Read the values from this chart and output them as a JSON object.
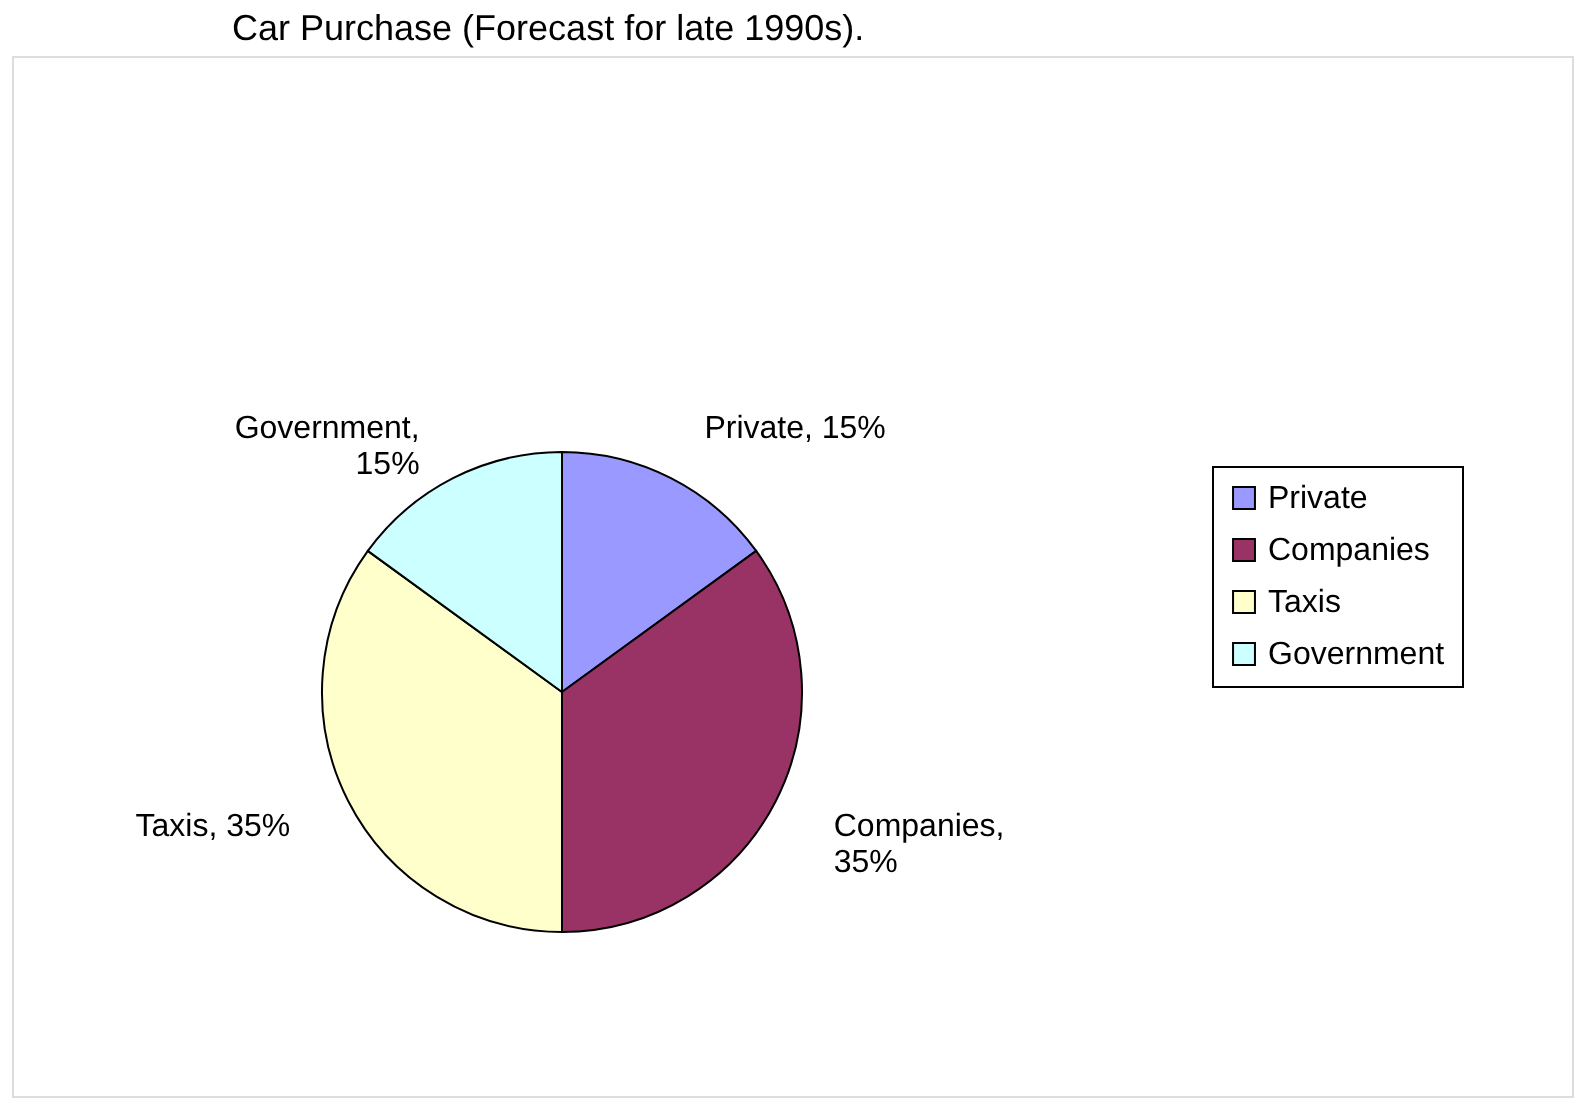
{
  "chart_data": {
    "type": "pie",
    "title": "Car Purchase (Forecast for late 1990s).",
    "categories": [
      "Private",
      "Companies",
      "Taxis",
      "Government"
    ],
    "values": [
      15,
      35,
      35,
      15
    ],
    "colors": [
      "#9999ff",
      "#993366",
      "#ffffcc",
      "#ccffff"
    ],
    "value_labels": [
      "Private, 15%",
      "Companies,\n35%",
      "Taxis, 35%",
      "Government,\n15%"
    ],
    "legend": "right"
  }
}
